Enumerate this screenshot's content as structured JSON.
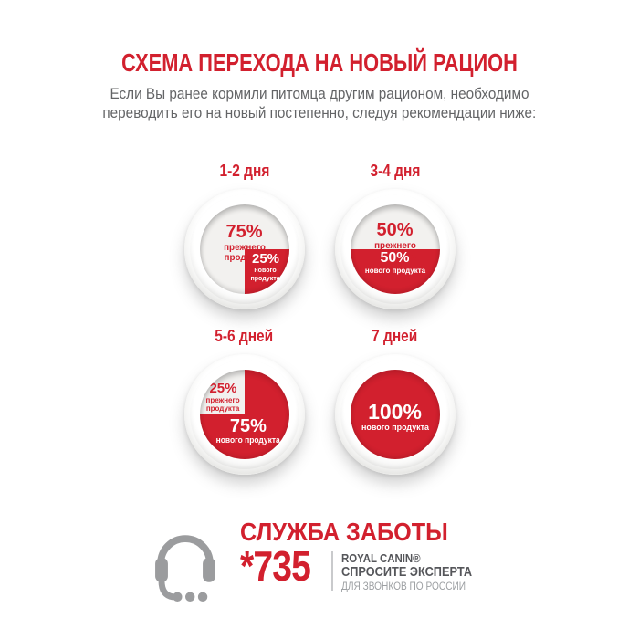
{
  "header": {
    "title": "СХЕМА ПЕРЕХОДА НА НОВЫЙ РАЦИОН",
    "subtitle_line1": "Если Вы ранее кормили питомца другим рационом, необходимо",
    "subtitle_line2": "переводить его на новый постепенно, следуя рекомендации ниже:"
  },
  "colors": {
    "brand_red": "#d2202e",
    "subtitle_gray": "#636466",
    "icon_gray": "#9b9c9e",
    "dark_gray": "#55565a",
    "note_gray": "#9da0a3"
  },
  "stages": [
    {
      "label": "1-2 дня",
      "old_pct": "75%",
      "old_text": "прежнего продукта",
      "new_pct": "25%",
      "new_text": "нового продукта",
      "wedge": {
        "start_deg": 0,
        "sweep_deg": 90
      }
    },
    {
      "label": "3-4 дня",
      "old_pct": "50%",
      "old_text": "прежнего продукта",
      "new_pct": "50%",
      "new_text": "нового продукта",
      "wedge": {
        "start_deg": 0,
        "sweep_deg": 180
      }
    },
    {
      "label": "5-6 дней",
      "old_pct": "25%",
      "old_text": "прежнего продукта",
      "new_pct": "75%",
      "new_text": "нового продукта",
      "wedge": {
        "start_deg": 270,
        "sweep_deg": 270
      }
    },
    {
      "label": "7 дней",
      "new_pct": "100%",
      "new_text": "нового продукта",
      "wedge": {
        "start_deg": 0,
        "sweep_deg": 360
      }
    }
  ],
  "footer": {
    "service_title": "СЛУЖБА ЗАБОТЫ",
    "phone": "*735",
    "brand": "ROYAL CANIN®",
    "ask_expert": "СПРОСИТЕ ЭКСПЕРТА",
    "calls_note": "ДЛЯ ЗВОНКОВ ПО РОССИИ",
    "headset_icon": "headset-icon"
  },
  "chart_data": {
    "type": "pie",
    "title": "СХЕМА ПЕРЕХОДА НА НОВЫЙ РАЦИОН",
    "units": "percent",
    "legend": false,
    "charts": [
      {
        "label": "1-2 дня",
        "slices": [
          {
            "name": "прежнего продукта",
            "value": 75
          },
          {
            "name": "нового продукта",
            "value": 25
          }
        ]
      },
      {
        "label": "3-4 дня",
        "slices": [
          {
            "name": "прежнего продукта",
            "value": 50
          },
          {
            "name": "нового продукта",
            "value": 50
          }
        ]
      },
      {
        "label": "5-6 дней",
        "slices": [
          {
            "name": "прежнего продукта",
            "value": 25
          },
          {
            "name": "нового продукта",
            "value": 75
          }
        ]
      },
      {
        "label": "7 дней",
        "slices": [
          {
            "name": "нового продукта",
            "value": 100
          }
        ]
      }
    ]
  }
}
